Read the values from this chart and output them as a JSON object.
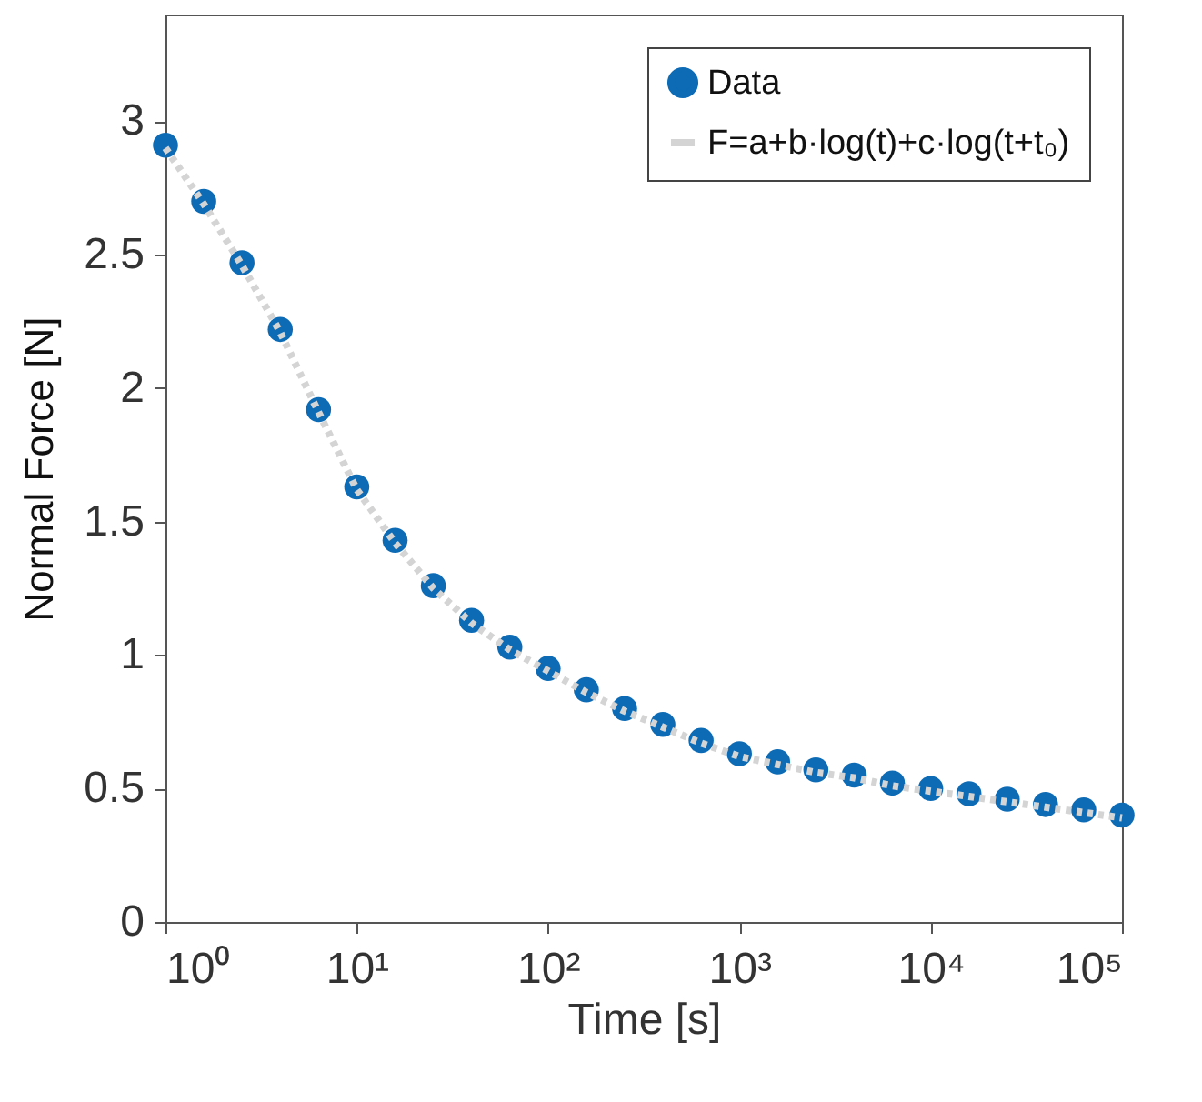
{
  "chart_data": {
    "type": "scatter",
    "xlabel": "Time [s]",
    "ylabel": "Normal Force [N]",
    "log": "x",
    "grid": false,
    "legend": "top right",
    "xlim": [
      1,
      100000
    ],
    "xticks": [
      {
        "value": 1,
        "label": "10⁰"
      },
      {
        "value": 10,
        "label": "10¹"
      },
      {
        "value": 100,
        "label": "10²"
      },
      {
        "value": 1000,
        "label": "10³"
      },
      {
        "value": 10000,
        "label": "10⁴"
      },
      {
        "value": 100000,
        "label": "10⁵"
      }
    ],
    "ylim": [
      0,
      3.4
    ],
    "yticks": [
      0,
      0.5,
      1,
      1.5,
      2,
      2.5,
      3
    ],
    "series": [
      {
        "name": "Data",
        "marker": "circle",
        "color": "#0d6bb5",
        "x": [
          1,
          1.585,
          2.512,
          3.981,
          6.31,
          10,
          15.85,
          25.12,
          39.81,
          63.1,
          100,
          158.5,
          251.2,
          398.1,
          631,
          1000,
          1585,
          2512,
          3981,
          6310,
          10000,
          15850,
          25120,
          39810,
          63100,
          100000
        ],
        "values": [
          2.91,
          2.7,
          2.47,
          2.22,
          1.92,
          1.63,
          1.43,
          1.26,
          1.13,
          1.03,
          0.95,
          0.87,
          0.8,
          0.74,
          0.68,
          0.63,
          0.6,
          0.57,
          0.55,
          0.52,
          0.5,
          0.48,
          0.46,
          0.44,
          0.42,
          0.4
        ]
      },
      {
        "name": "F=a+b·log(t)+c·log(t+t₀)",
        "type": "line",
        "line_style": "dotted",
        "color": "#d4d4d4",
        "x": [
          1,
          1.585,
          2.512,
          3.981,
          6.31,
          10,
          15.85,
          25.12,
          39.81,
          63.1,
          100,
          158.5,
          251.2,
          398.1,
          631,
          1000,
          1585,
          2512,
          3981,
          6310,
          10000,
          15850,
          25120,
          39810,
          63100,
          100000
        ],
        "values": [
          2.9,
          2.69,
          2.46,
          2.21,
          1.91,
          1.62,
          1.42,
          1.25,
          1.12,
          1.02,
          0.94,
          0.86,
          0.79,
          0.73,
          0.67,
          0.62,
          0.59,
          0.56,
          0.54,
          0.51,
          0.49,
          0.47,
          0.45,
          0.43,
          0.41,
          0.39
        ]
      }
    ]
  }
}
